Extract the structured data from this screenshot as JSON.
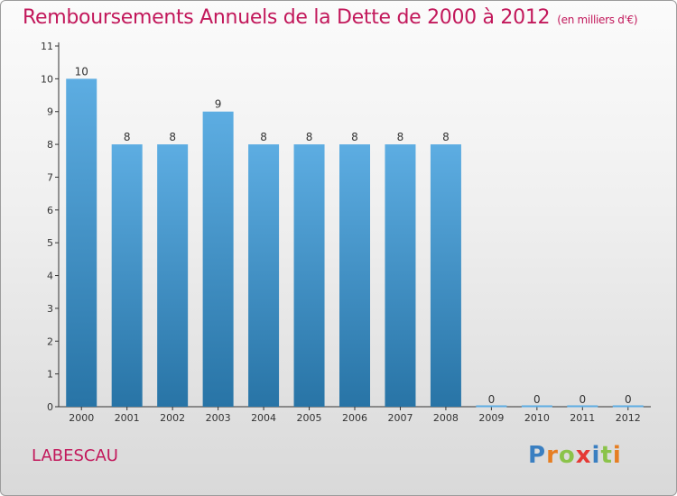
{
  "chart_data": {
    "type": "bar",
    "title": "Remboursements Annuels de la Dette de 2000 à 2012",
    "subtitle": "(en milliers d'€)",
    "categories": [
      "2000",
      "2001",
      "2002",
      "2003",
      "2004",
      "2005",
      "2006",
      "2007",
      "2008",
      "2009",
      "2010",
      "2011",
      "2012"
    ],
    "values": [
      10,
      8,
      8,
      9,
      8,
      8,
      8,
      8,
      8,
      0,
      0,
      0,
      0
    ],
    "data_labels": [
      "10",
      "8",
      "8",
      "9",
      "8",
      "8",
      "8",
      "8",
      "8",
      "0",
      "0",
      "0",
      "0"
    ],
    "ylim": [
      0,
      11
    ],
    "yticks": [
      0,
      1,
      2,
      3,
      4,
      5,
      6,
      7,
      8,
      9,
      10,
      11
    ],
    "xlabel": "",
    "ylabel": "",
    "grid": false,
    "bar_color_top": "#5dade2",
    "bar_color_bottom": "#2874a6"
  },
  "commune": "LABESCAU",
  "logo": {
    "letters": [
      "P",
      "r",
      "o",
      "x",
      "i",
      "t",
      "i"
    ],
    "colors": [
      "#3a7fc1",
      "#e67e22",
      "#8bc34a",
      "#e53935",
      "#3a7fc1",
      "#8bc34a",
      "#e67e22"
    ]
  },
  "colors": {
    "title": "#c2185b",
    "axis": "#333333"
  }
}
